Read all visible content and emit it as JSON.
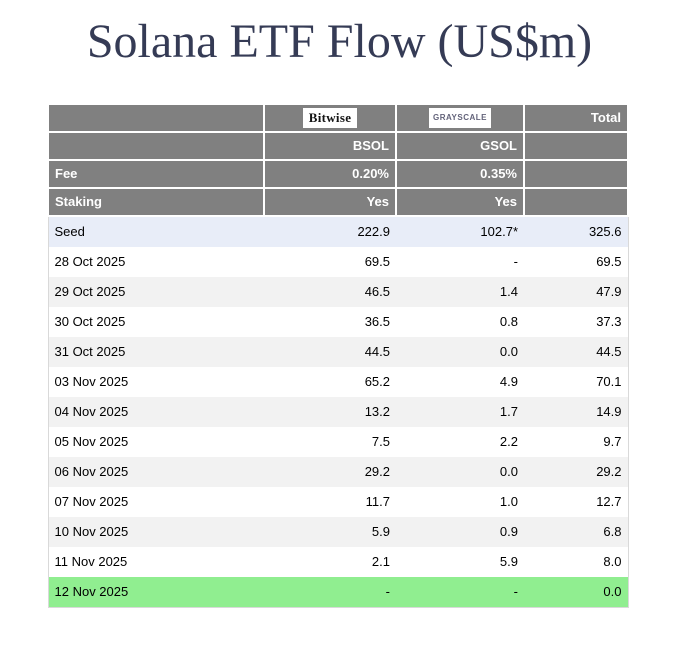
{
  "title": "Solana ETF Flow (US$m)",
  "header": {
    "bitwise_logo": "Bitwise",
    "grayscale_logo": "GRAYSCALE",
    "total_label": "Total",
    "bsol_ticker": "BSOL",
    "gsol_ticker": "GSOL",
    "fee_label": "Fee",
    "fee_bsol": "0.20%",
    "fee_gsol": "0.35%",
    "staking_label": "Staking",
    "staking_bsol": "Yes",
    "staking_gsol": "Yes"
  },
  "rows": [
    {
      "label": "Seed",
      "bsol": "222.9",
      "gsol": "102.7*",
      "total": "325.6"
    },
    {
      "label": "28 Oct 2025",
      "bsol": "69.5",
      "gsol": "-",
      "total": "69.5"
    },
    {
      "label": "29 Oct 2025",
      "bsol": "46.5",
      "gsol": "1.4",
      "total": "47.9"
    },
    {
      "label": "30 Oct 2025",
      "bsol": "36.5",
      "gsol": "0.8",
      "total": "37.3"
    },
    {
      "label": "31 Oct 2025",
      "bsol": "44.5",
      "gsol": "0.0",
      "total": "44.5"
    },
    {
      "label": "03 Nov 2025",
      "bsol": "65.2",
      "gsol": "4.9",
      "total": "70.1"
    },
    {
      "label": "04 Nov 2025",
      "bsol": "13.2",
      "gsol": "1.7",
      "total": "14.9"
    },
    {
      "label": "05 Nov 2025",
      "bsol": "7.5",
      "gsol": "2.2",
      "total": "9.7"
    },
    {
      "label": "06 Nov 2025",
      "bsol": "29.2",
      "gsol": "0.0",
      "total": "29.2"
    },
    {
      "label": "07 Nov 2025",
      "bsol": "11.7",
      "gsol": "1.0",
      "total": "12.7"
    },
    {
      "label": "10 Nov 2025",
      "bsol": "5.9",
      "gsol": "0.9",
      "total": "6.8"
    },
    {
      "label": "11 Nov 2025",
      "bsol": "2.1",
      "gsol": "5.9",
      "total": "8.0"
    },
    {
      "label": "12 Nov 2025",
      "bsol": "-",
      "gsol": "-",
      "total": "0.0"
    }
  ],
  "colors": {
    "header_bg": "#808080",
    "header_text": "#ffffff",
    "seed_row_bg": "#e8edf8",
    "alt_row_bg": "#f2f2f2",
    "latest_row_bg": "#90ee90",
    "title_color": "#353b55",
    "grayscale_logo_text": "#63637a"
  },
  "chart_data": {
    "type": "table",
    "title": "Solana ETF Flow (US$m)",
    "columns": [
      "",
      "BSOL",
      "GSOL",
      "Total"
    ],
    "providers": {
      "BSOL": "Bitwise",
      "GSOL": "Grayscale"
    },
    "fee": {
      "BSOL": "0.20%",
      "GSOL": "0.35%"
    },
    "staking": {
      "BSOL": "Yes",
      "GSOL": "Yes"
    },
    "rows": [
      [
        "Seed",
        222.9,
        "102.7*",
        325.6
      ],
      [
        "28 Oct 2025",
        69.5,
        "-",
        69.5
      ],
      [
        "29 Oct 2025",
        46.5,
        1.4,
        47.9
      ],
      [
        "30 Oct 2025",
        36.5,
        0.8,
        37.3
      ],
      [
        "31 Oct 2025",
        44.5,
        0.0,
        44.5
      ],
      [
        "03 Nov 2025",
        65.2,
        4.9,
        70.1
      ],
      [
        "04 Nov 2025",
        13.2,
        1.7,
        14.9
      ],
      [
        "05 Nov 2025",
        7.5,
        2.2,
        9.7
      ],
      [
        "06 Nov 2025",
        29.2,
        0.0,
        29.2
      ],
      [
        "07 Nov 2025",
        11.7,
        1.0,
        12.7
      ],
      [
        "10 Nov 2025",
        5.9,
        0.9,
        6.8
      ],
      [
        "11 Nov 2025",
        2.1,
        5.9,
        8.0
      ],
      [
        "12 Nov 2025",
        "-",
        "-",
        0.0
      ]
    ],
    "layout_hints": {
      "seed_row_highlight": "#e8edf8",
      "latest_row_highlight": "#90ee90",
      "alternating_rows": true,
      "header_bg": "#808080"
    }
  }
}
